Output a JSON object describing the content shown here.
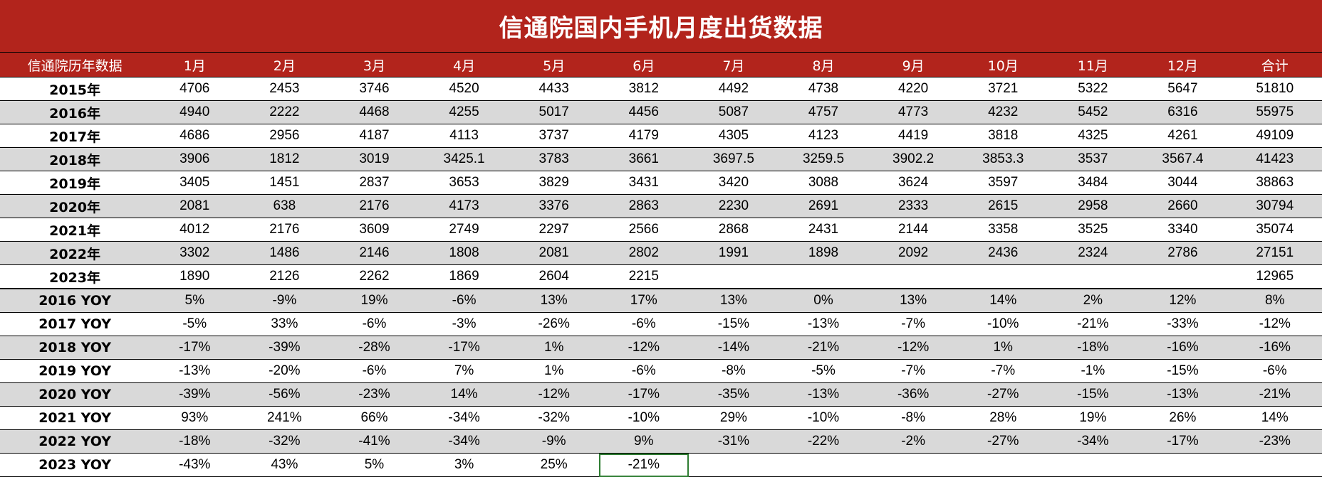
{
  "title": "信通院国内手机月度出货数据",
  "header": [
    "信通院历年数据",
    "1月",
    "2月",
    "3月",
    "4月",
    "5月",
    "6月",
    "7月",
    "8月",
    "9月",
    "10月",
    "11月",
    "12月",
    "合计"
  ],
  "shipments": [
    [
      "2015年",
      "4706",
      "2453",
      "3746",
      "4520",
      "4433",
      "3812",
      "4492",
      "4738",
      "4220",
      "3721",
      "5322",
      "5647",
      "51810"
    ],
    [
      "2016年",
      "4940",
      "2222",
      "4468",
      "4255",
      "5017",
      "4456",
      "5087",
      "4757",
      "4773",
      "4232",
      "5452",
      "6316",
      "55975"
    ],
    [
      "2017年",
      "4686",
      "2956",
      "4187",
      "4113",
      "3737",
      "4179",
      "4305",
      "4123",
      "4419",
      "3818",
      "4325",
      "4261",
      "49109"
    ],
    [
      "2018年",
      "3906",
      "1812",
      "3019",
      "3425.1",
      "3783",
      "3661",
      "3697.5",
      "3259.5",
      "3902.2",
      "3853.3",
      "3537",
      "3567.4",
      "41423"
    ],
    [
      "2019年",
      "3405",
      "1451",
      "2837",
      "3653",
      "3829",
      "3431",
      "3420",
      "3088",
      "3624",
      "3597",
      "3484",
      "3044",
      "38863"
    ],
    [
      "2020年",
      "2081",
      "638",
      "2176",
      "4173",
      "3376",
      "2863",
      "2230",
      "2691",
      "2333",
      "2615",
      "2958",
      "2660",
      "30794"
    ],
    [
      "2021年",
      "4012",
      "2176",
      "3609",
      "2749",
      "2297",
      "2566",
      "2868",
      "2431",
      "2144",
      "3358",
      "3525",
      "3340",
      "35074"
    ],
    [
      "2022年",
      "3302",
      "1486",
      "2146",
      "1808",
      "2081",
      "2802",
      "1991",
      "1898",
      "2092",
      "2436",
      "2324",
      "2786",
      "27151"
    ],
    [
      "2023年",
      "1890",
      "2126",
      "2262",
      "1869",
      "2604",
      "2215",
      "",
      "",
      "",
      "",
      "",
      "",
      "12965"
    ]
  ],
  "yoy": [
    [
      "2016 YOY",
      "5%",
      "-9%",
      "19%",
      "-6%",
      "13%",
      "17%",
      "13%",
      "0%",
      "13%",
      "14%",
      "2%",
      "12%",
      "8%"
    ],
    [
      "2017 YOY",
      "-5%",
      "33%",
      "-6%",
      "-3%",
      "-26%",
      "-6%",
      "-15%",
      "-13%",
      "-7%",
      "-10%",
      "-21%",
      "-33%",
      "-12%"
    ],
    [
      "2018 YOY",
      "-17%",
      "-39%",
      "-28%",
      "-17%",
      "1%",
      "-12%",
      "-14%",
      "-21%",
      "-12%",
      "1%",
      "-18%",
      "-16%",
      "-16%"
    ],
    [
      "2019 YOY",
      "-13%",
      "-20%",
      "-6%",
      "7%",
      "1%",
      "-6%",
      "-8%",
      "-5%",
      "-7%",
      "-7%",
      "-1%",
      "-15%",
      "-6%"
    ],
    [
      "2020 YOY",
      "-39%",
      "-56%",
      "-23%",
      "14%",
      "-12%",
      "-17%",
      "-35%",
      "-13%",
      "-36%",
      "-27%",
      "-15%",
      "-13%",
      "-21%"
    ],
    [
      "2021 YOY",
      "93%",
      "241%",
      "66%",
      "-34%",
      "-32%",
      "-10%",
      "29%",
      "-10%",
      "-8%",
      "28%",
      "19%",
      "26%",
      "14%"
    ],
    [
      "2022 YOY",
      "-18%",
      "-32%",
      "-41%",
      "-34%",
      "-9%",
      "9%",
      "-31%",
      "-22%",
      "-2%",
      "-27%",
      "-34%",
      "-17%",
      "-23%"
    ],
    [
      "2023 YOY",
      "-43%",
      "43%",
      "5%",
      "3%",
      "25%",
      "-21%",
      "",
      "",
      "",
      "",
      "",
      "",
      ""
    ]
  ],
  "colors": {
    "header_bg": "#b2241c",
    "band_gray": "#d9d9d9",
    "selection_border": "#2e7d32"
  }
}
